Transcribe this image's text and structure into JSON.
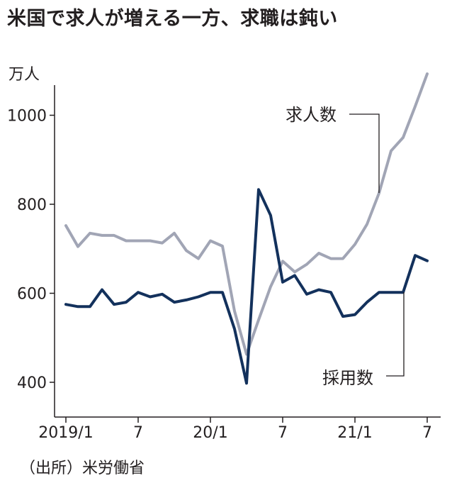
{
  "title": "米国で求人が増える一方、求職は鈍い",
  "source": "（出所）米労働省",
  "chart_data": {
    "type": "line",
    "title": "米国で求人が増える一方、求職は鈍い",
    "unit_label": "万人",
    "ylim": [
      360,
      1120
    ],
    "yticks": [
      400,
      600,
      800,
      1000
    ],
    "x_tick_labels": [
      {
        "index": 0,
        "label": "2019/1"
      },
      {
        "index": 6,
        "label": "7"
      },
      {
        "index": 12,
        "label": "20/1"
      },
      {
        "index": 18,
        "label": "7"
      },
      {
        "index": 24,
        "label": "21/1"
      },
      {
        "index": 30,
        "label": "7"
      }
    ],
    "series": [
      {
        "name": "求人数",
        "color": "#a1a5b5",
        "values": [
          752,
          705,
          735,
          730,
          730,
          718,
          718,
          718,
          713,
          735,
          696,
          678,
          718,
          706,
          560,
          463,
          540,
          615,
          672,
          648,
          665,
          690,
          678,
          678,
          710,
          755,
          825,
          920,
          950,
          1020,
          1093
        ]
      },
      {
        "name": "採用数",
        "color": "#13315c",
        "values": [
          575,
          570,
          570,
          608,
          575,
          580,
          602,
          592,
          598,
          580,
          585,
          592,
          602,
          602,
          520,
          398,
          833,
          775,
          625,
          640,
          598,
          608,
          602,
          548,
          552,
          580,
          602,
          602,
          602,
          685,
          673
        ]
      }
    ],
    "grid": false
  }
}
